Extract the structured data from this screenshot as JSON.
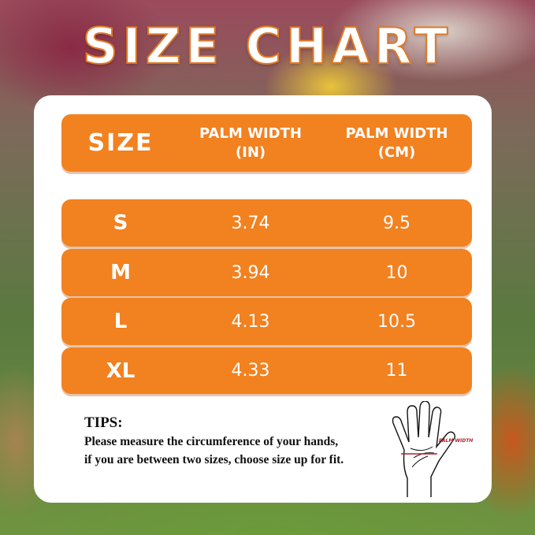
{
  "title": "SIZE CHART",
  "table": {
    "headers": [
      "SIZE",
      "PALM WIDTH\n(IN)",
      "PALM WIDTH\n(CM)"
    ],
    "header_lines": {
      "size": "SIZE",
      "in_1": "PALM WIDTH",
      "in_2": "(IN)",
      "cm_1": "PALM WIDTH",
      "cm_2": "(CM)"
    },
    "rows": [
      {
        "size": "S",
        "in": "3.74",
        "cm": "9.5"
      },
      {
        "size": "M",
        "in": "3.94",
        "cm": "10"
      },
      {
        "size": "L",
        "in": "4.13",
        "cm": "10.5"
      },
      {
        "size": "XL",
        "in": "4.33",
        "cm": "11"
      }
    ]
  },
  "tips": {
    "heading": "TIPS:",
    "line1": "Please measure the circumference of your hands,",
    "line2": "if you are between two sizes, choose size up for fit."
  },
  "diagram": {
    "label": "PALM WIDTH",
    "icon": "hand-outline-icon"
  },
  "colors": {
    "accent": "#f28120",
    "measure_line": "#b0202a"
  }
}
